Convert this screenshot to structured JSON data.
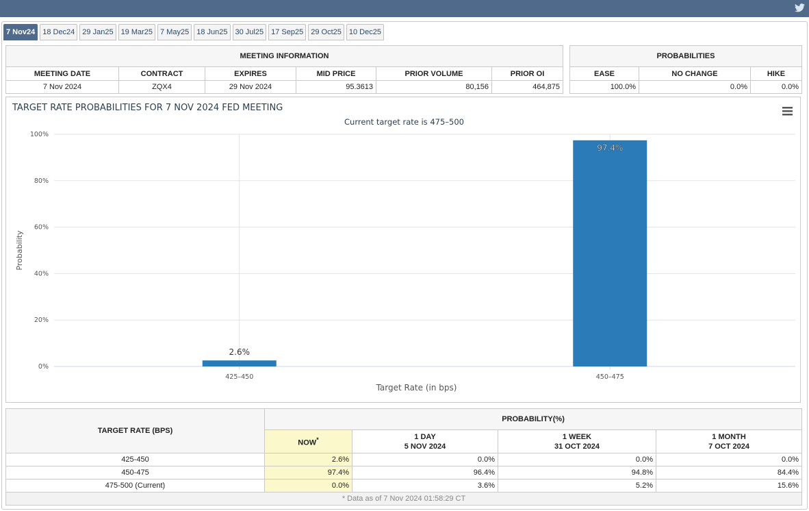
{
  "tabs": [
    "7 Nov24",
    "18 Dec24",
    "29 Jan25",
    "19 Mar25",
    "7 May25",
    "18 Jun25",
    "30 Jul25",
    "17 Sep25",
    "29 Oct25",
    "10 Dec25"
  ],
  "meeting_info": {
    "title": "MEETING INFORMATION",
    "headers": [
      "MEETING DATE",
      "CONTRACT",
      "EXPIRES",
      "MID PRICE",
      "PRIOR VOLUME",
      "PRIOR OI"
    ],
    "row": [
      "7 Nov 2024",
      "ZQX4",
      "29 Nov 2024",
      "95.3613",
      "80,156",
      "464,875"
    ]
  },
  "probabilities": {
    "title": "PROBABILITIES",
    "headers": [
      "EASE",
      "NO CHANGE",
      "HIKE"
    ],
    "row": [
      "100.0%",
      "0.0%",
      "0.0%"
    ]
  },
  "chart_data": {
    "type": "bar",
    "title": "TARGET RATE PROBABILITIES FOR 7 NOV 2024 FED MEETING",
    "subtitle": "Current target rate is 475–500",
    "x_label": "Target Rate (in bps)",
    "y_label": "Probability",
    "categories": [
      "425–450",
      "450–475"
    ],
    "values": [
      2.6,
      97.4
    ],
    "value_labels": [
      "2.6%",
      "97.4%"
    ],
    "color": "#2b7bb9",
    "ylim": [
      0,
      100
    ],
    "yticks": [
      {
        "value": 0,
        "label": "0%"
      },
      {
        "value": 20,
        "label": "20%"
      },
      {
        "value": 40,
        "label": "40%"
      },
      {
        "value": 60,
        "label": "60%"
      },
      {
        "value": 80,
        "label": "80%"
      },
      {
        "value": 100,
        "label": "100%"
      }
    ],
    "grid": true
  },
  "rate_table": {
    "header": "TARGET RATE (BPS)",
    "group": "PROBABILITY(%)",
    "columns": [
      {
        "title": "NOW",
        "note": "*"
      },
      {
        "title": "1 DAY",
        "date": "5 NOV 2024"
      },
      {
        "title": "1 WEEK",
        "date": "31 OCT 2024"
      },
      {
        "title": "1 MONTH",
        "date": "7 OCT 2024"
      }
    ],
    "rows": [
      [
        "425-450",
        "2.6%",
        "0.0%",
        "0.0%",
        "0.0%"
      ],
      [
        "450-475",
        "97.4%",
        "96.4%",
        "94.8%",
        "84.4%"
      ],
      [
        "475-500 (Current)",
        "0.0%",
        "3.6%",
        "5.2%",
        "15.6%"
      ]
    ],
    "footnote": "* Data as of 7 Nov 2024 01:58:29 CT"
  }
}
